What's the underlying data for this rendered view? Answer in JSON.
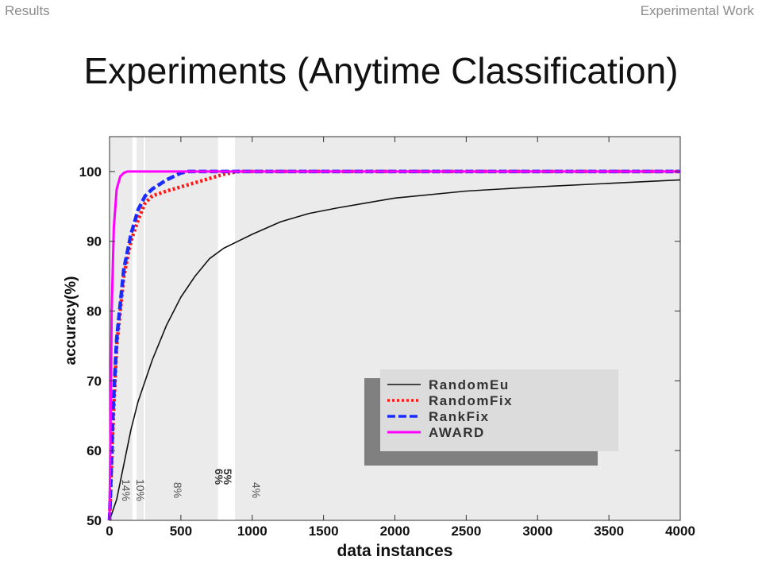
{
  "header": {
    "section_label": "Results",
    "topic_label": "Experimental Work"
  },
  "slide": {
    "title": "Experiments (Anytime Classification)"
  },
  "colors": {
    "RandomEu": "#111111",
    "RandomFix": "#ff1a1a",
    "RankFix": "#1a2cff",
    "AWARD": "#ff00ff",
    "panel_bg": "#ebebeb",
    "legend_bg": "#dcdcdc",
    "legend_shadow": "#808080"
  },
  "chart_data": {
    "type": "line",
    "title": "",
    "xlabel": "data instances",
    "ylabel": "accuracy(%)",
    "xlim": [
      0,
      4000
    ],
    "ylim": [
      50,
      105
    ],
    "xticks": [
      0,
      500,
      1000,
      1500,
      2000,
      2500,
      3000,
      3500,
      4000
    ],
    "yticks": [
      50,
      60,
      70,
      80,
      90,
      100
    ],
    "grid": false,
    "legend_position": "lower-right",
    "legend": [
      "RandomEu",
      "RandomFix",
      "RankFix",
      "AWARD"
    ],
    "series": [
      {
        "name": "RandomEu",
        "style": "solid-thin",
        "x": [
          0,
          50,
          100,
          150,
          200,
          300,
          400,
          500,
          600,
          700,
          800,
          900,
          1000,
          1200,
          1400,
          1600,
          1800,
          2000,
          2500,
          3000,
          3500,
          4000
        ],
        "y": [
          50,
          53,
          58,
          63,
          67,
          73,
          78,
          82,
          85,
          87.5,
          89,
          90,
          91,
          92.8,
          94,
          94.8,
          95.5,
          96.2,
          97.2,
          97.8,
          98.3,
          98.8
        ]
      },
      {
        "name": "RandomFix",
        "style": "dotted",
        "x": [
          0,
          25,
          50,
          100,
          150,
          200,
          250,
          300,
          400,
          500,
          600,
          700,
          800,
          900,
          1000,
          1500,
          2000,
          3000,
          4000
        ],
        "y": [
          50,
          64,
          75,
          85,
          90,
          93,
          95.5,
          96.5,
          97.2,
          97.8,
          98.4,
          99,
          99.6,
          100,
          100,
          100,
          100,
          100,
          100
        ]
      },
      {
        "name": "RankFix",
        "style": "dashed",
        "x": [
          0,
          25,
          50,
          100,
          150,
          200,
          250,
          300,
          400,
          500,
          550,
          1000,
          2000,
          3000,
          4000
        ],
        "y": [
          50,
          66,
          76,
          86,
          91,
          94.5,
          96.5,
          97.5,
          98.8,
          99.8,
          100,
          100,
          100,
          100,
          100
        ]
      },
      {
        "name": "AWARD",
        "style": "solid-thick",
        "x": [
          0,
          15,
          30,
          50,
          75,
          100,
          125,
          1000,
          2000,
          3000,
          4000
        ],
        "y": [
          50,
          80,
          92,
          97.5,
          99.3,
          99.8,
          100,
          100,
          100,
          100,
          100
        ]
      }
    ],
    "bands": [
      {
        "x0": 0,
        "x1": 160,
        "label": "14%",
        "label_x": 90
      },
      {
        "x0": 190,
        "x1": 240,
        "label": "10%",
        "label_x": 190
      },
      {
        "x0": 250,
        "x1": 760,
        "label": "8%",
        "label_x": 450
      },
      {
        "x0": 880,
        "x1": 4000,
        "label": "4%",
        "label_x": 1000
      }
    ],
    "band_gap_labels": [
      {
        "label": "6%",
        "x": 740
      },
      {
        "label": "5%",
        "x": 800
      }
    ]
  }
}
